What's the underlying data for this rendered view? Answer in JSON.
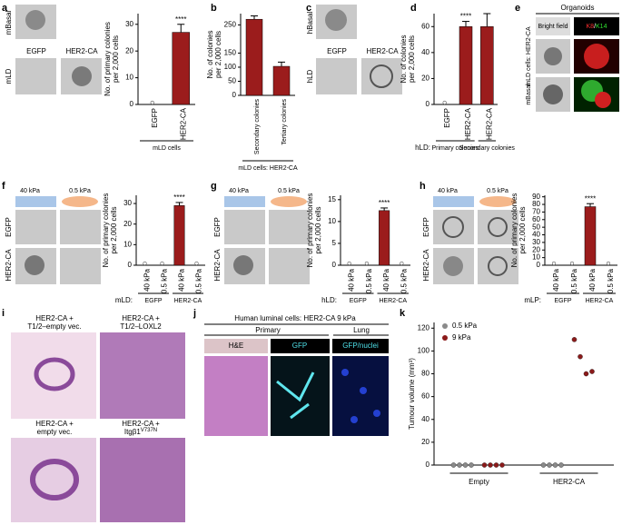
{
  "panel_labels": [
    "a",
    "b",
    "c",
    "d",
    "e",
    "f",
    "g",
    "h",
    "i",
    "j",
    "k"
  ],
  "images": {
    "a": {
      "top": "mBasal",
      "side": "mLD",
      "columns": [
        "EGFP",
        "HER2-CA"
      ]
    },
    "c": {
      "top": "hBasal",
      "side": "hLD",
      "columns": [
        "EGFP",
        "HER2-CA"
      ]
    },
    "e": {
      "title": "Organoids",
      "columns": [
        "Bright field"
      ],
      "stain": [
        "K8",
        "/",
        "K14"
      ],
      "rows": [
        "mLD cells: HER2-CA",
        "mBasal"
      ]
    },
    "f": {
      "columns": [
        "40 kPa",
        "0.5 kPa"
      ],
      "rows": [
        "EGFP",
        "HER2-CA"
      ]
    },
    "g": {
      "columns": [
        "40 kPa",
        "0.5 kPa"
      ],
      "rows": [
        "EGFP",
        "HER2-CA"
      ]
    },
    "h": {
      "columns": [
        "40 kPa",
        "0.5 kPa"
      ],
      "rows": [
        "EGFP",
        "HER2-CA"
      ]
    },
    "i": {
      "captions": [
        [
          "HER2-CA +",
          "T1/2–empty vec."
        ],
        [
          "HER2-CA +",
          "T1/2–LOXL2"
        ],
        [
          "HER2-CA +",
          "empty vec."
        ],
        [
          "HER2-CA +",
          "Itgβ1",
          "V737N"
        ]
      ]
    },
    "j": {
      "title": "Human luminal cells: HER2-CA 9 kPa",
      "sections": [
        "Primary",
        "Lung"
      ],
      "stains": [
        "H&E",
        "GFP",
        "GFP/nuclei"
      ]
    }
  },
  "chart_data": [
    {
      "type": "bar",
      "ylabel": [
        "No. of primary colonies",
        "per 2,000 cells"
      ],
      "categories": [
        "EGFP",
        "HER2-CA"
      ],
      "values": [
        0,
        27
      ],
      "errors": [
        null,
        3
      ],
      "color": "#9b1c1c",
      "ylim": [
        0,
        34
      ],
      "yticks": [
        0,
        10,
        20,
        30
      ],
      "annotation": "****",
      "groups": [
        "mLD cells"
      ]
    },
    {
      "type": "bar",
      "ylabel": [
        "No. of colonies",
        "per 2,000 cells"
      ],
      "categories": [
        "Secondary colonies",
        "Tertiary colonies"
      ],
      "values": [
        270,
        103
      ],
      "errors": [
        12,
        15
      ],
      "color": "#9b1c1c",
      "ylim": [
        0,
        290
      ],
      "yticks": [
        0,
        50,
        100,
        150,
        250
      ],
      "groups": [
        "mLD cells: HER2-CA"
      ]
    },
    {
      "type": "bar",
      "ylabel": [
        "No. of colonies",
        "per 2,000 cells"
      ],
      "categories": [
        "EGFP",
        "HER2-CA",
        "HER2-CA"
      ],
      "values": [
        0,
        60,
        60
      ],
      "errors": [
        null,
        4,
        10
      ],
      "color": "#9b1c1c",
      "ylim": [
        0,
        70
      ],
      "yticks": [
        0,
        20,
        40,
        60
      ],
      "annotation": "****",
      "group_prefix": "hLD:",
      "groups": [
        "Primary colonies",
        "Secondary colonies"
      ]
    },
    {
      "type": "bar",
      "ylabel": [
        "No. of primary colonies",
        "per 2,000 cells"
      ],
      "categories": [
        "40 kPa",
        "0.5 kPa",
        "40 kPa",
        "0.5 kPa"
      ],
      "values": [
        0,
        0,
        29,
        0
      ],
      "errors": [
        null,
        null,
        1.5,
        null
      ],
      "color": "#9b1c1c",
      "ylim": [
        0,
        34
      ],
      "yticks": [
        0,
        10,
        20,
        30
      ],
      "annotation": "****",
      "group_prefix": "mLD:",
      "groups": [
        "EGFP",
        "HER2-CA"
      ]
    },
    {
      "type": "bar",
      "ylabel": [
        "No. of primary colonies",
        "per 2,000 cells"
      ],
      "categories": [
        "40 kPa",
        "0.5 kPa",
        "40 kPa",
        "0.5 kPa"
      ],
      "values": [
        0,
        0,
        12.5,
        0
      ],
      "errors": [
        null,
        null,
        0.6,
        null
      ],
      "color": "#9b1c1c",
      "ylim": [
        0,
        16
      ],
      "yticks": [
        0,
        5,
        10,
        15
      ],
      "annotation": "****",
      "group_prefix": "hLD:",
      "groups": [
        "EGFP",
        "HER2-CA"
      ]
    },
    {
      "type": "bar",
      "ylabel": [
        "No. of primary colonies",
        "per 2,000 cells"
      ],
      "categories": [
        "40 kPa",
        "0.5 kPa",
        "40 kPa",
        "0.5 kPa"
      ],
      "values": [
        0,
        0,
        77,
        0
      ],
      "errors": [
        null,
        null,
        4,
        null
      ],
      "color": "#9b1c1c",
      "ylim": [
        0,
        92
      ],
      "yticks": [
        0,
        10,
        20,
        30,
        40,
        50,
        60,
        70,
        80,
        90
      ],
      "annotation": "****",
      "group_prefix": "mLP:",
      "groups": [
        "EGFP",
        "HER2-CA"
      ]
    },
    {
      "type": "dot",
      "ylabel": [
        "Tumour volume (mm³)"
      ],
      "categories": [
        "Empty",
        "HER2-CA"
      ],
      "ylim": [
        0,
        125
      ],
      "yticks": [
        0,
        20,
        40,
        60,
        80,
        100,
        120
      ],
      "series": [
        {
          "name": "0.5 kPa",
          "color": "#8a8a8a",
          "values": [
            [
              0,
              0,
              0,
              0
            ],
            [
              0,
              0,
              0,
              0
            ]
          ]
        },
        {
          "name": "9 kPa",
          "color": "#8b1a1a",
          "values": [
            [
              0,
              0,
              0,
              0
            ],
            [
              110,
              95,
              80,
              82
            ]
          ]
        }
      ]
    }
  ]
}
